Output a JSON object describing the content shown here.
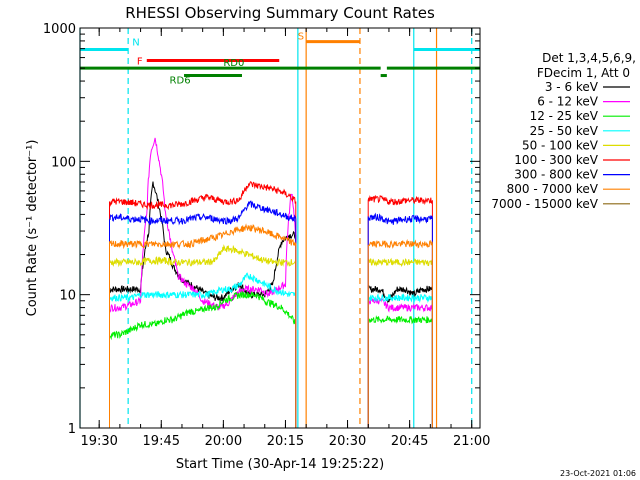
{
  "chart_data": {
    "type": "line",
    "title": "RHESSI Observing Summary Count Rates",
    "xlabel": "Start Time (30-Apr-14 19:25:22)",
    "ylabel": "Count Rate (s⁻¹ detector⁻¹)",
    "y_scale": "log",
    "ylim": [
      1,
      1000
    ],
    "xlim": [
      "19:25:22",
      "21:02:00"
    ],
    "x_tick_labels": [
      "19:30",
      "19:45",
      "20:00",
      "20:15",
      "20:30",
      "20:45",
      "21:00"
    ],
    "y_tick_labels": [
      "1",
      "10",
      "100",
      "1000"
    ],
    "footer_date": "23-Oct-2021 01:06",
    "legend": {
      "header_line1": "Det 1,3,4,5,6,9,",
      "header_line2": "FDecim 1, Att 0",
      "entries": [
        {
          "label": "3 - 6 keV",
          "color": "#000000"
        },
        {
          "label": "6 - 12 keV",
          "color": "#ff00ff"
        },
        {
          "label": "12 - 25 keV",
          "color": "#00ee00"
        },
        {
          "label": "25 - 50 keV",
          "color": "#00ffff"
        },
        {
          "label": "50 - 100 keV",
          "color": "#dddd00"
        },
        {
          "label": "100 - 300 keV",
          "color": "#ff0000"
        },
        {
          "label": "300 - 800 keV",
          "color": "#0000ff"
        },
        {
          "label": "800 - 7000 keV",
          "color": "#ff8000"
        },
        {
          "label": "7000 - 15000 keV",
          "color": "#8b6914"
        }
      ]
    },
    "flags": [
      {
        "label": "N",
        "color": "#00e5ee",
        "segments": [
          [
            "19:25:22",
            "19:37:00"
          ],
          [
            "20:46:00",
            "21:02:00"
          ]
        ],
        "level": 690
      },
      {
        "label": "F",
        "color": "#ff0000",
        "segments": [
          [
            "19:41:30",
            "20:13:30"
          ]
        ],
        "level": 570
      },
      {
        "label": "S",
        "color": "#ff8000",
        "segments": [
          [
            "20:20:00",
            "20:33:00"
          ]
        ],
        "level": 790
      },
      {
        "label": "RD0",
        "color": "#008000",
        "segments": [
          [
            "19:25:22",
            "20:38:00"
          ],
          [
            "20:39:30",
            "21:02:00"
          ]
        ],
        "level": 500
      },
      {
        "label": "RD6",
        "color": "#008000",
        "segments": [
          [
            "19:50:30",
            "20:04:30"
          ],
          [
            "20:38:00",
            "20:39:30"
          ]
        ],
        "level": 440
      }
    ],
    "vlines": [
      {
        "time": "19:25:22",
        "color": "#00e5ee",
        "style": "solid"
      },
      {
        "time": "19:37:00",
        "color": "#00e5ee",
        "style": "dashed"
      },
      {
        "time": "20:18:00",
        "color": "#00e5ee",
        "style": "solid"
      },
      {
        "time": "20:20:00",
        "color": "#ff8000",
        "style": "solid"
      },
      {
        "time": "20:33:00",
        "color": "#ff8000",
        "style": "dashed"
      },
      {
        "time": "20:46:00",
        "color": "#00e5ee",
        "style": "solid"
      },
      {
        "time": "20:51:30",
        "color": "#ff8000",
        "style": "solid"
      },
      {
        "time": "21:00:00",
        "color": "#00e5ee",
        "style": "dashed"
      }
    ],
    "series": [
      {
        "name": "3 - 6 keV",
        "color": "#000000",
        "x": [
          "19:32:30",
          "19:35:00",
          "19:38:00",
          "19:40:00",
          "19:42:00",
          "19:43:00",
          "19:44:30",
          "19:46:00",
          "19:48:00",
          "19:50:00",
          "19:52:00",
          "19:54:00",
          "19:56:00",
          "19:58:00",
          "20:00:00",
          "20:02:00",
          "20:04:00",
          "20:06:00",
          "20:08:00",
          "20:10:00",
          "20:12:00",
          "20:14:00",
          "20:16:00",
          "20:17:30",
          "20:35:00",
          "20:38:00",
          "20:40:00",
          "20:42:00",
          "20:44:00",
          "20:46:00",
          "20:48:00",
          "20:50:30"
        ],
        "y": [
          11,
          11,
          11,
          11,
          30,
          70,
          45,
          22,
          16,
          13,
          12,
          11,
          10,
          9.5,
          9.5,
          11,
          12,
          10,
          10,
          10,
          12,
          25,
          28,
          28,
          11,
          11,
          9,
          11,
          11,
          10,
          11,
          11
        ]
      },
      {
        "name": "6 - 12 keV",
        "color": "#ff00ff",
        "x": [
          "19:32:30",
          "19:35:00",
          "19:38:00",
          "19:40:00",
          "19:41:30",
          "19:42:30",
          "19:43:30",
          "19:44:30",
          "19:46:00",
          "19:47:30",
          "19:49:00",
          "19:51:00",
          "19:53:00",
          "19:55:00",
          "19:57:00",
          "19:59:00",
          "20:01:00",
          "20:03:00",
          "20:05:00",
          "20:07:00",
          "20:09:00",
          "20:11:00",
          "20:13:00",
          "20:15:00",
          "20:16:30",
          "20:17:30",
          "20:35:00",
          "20:38:00",
          "20:40:00",
          "20:42:00",
          "20:44:00",
          "20:46:00",
          "20:48:00",
          "20:50:30"
        ],
        "y": [
          8,
          8,
          8.5,
          9,
          40,
          120,
          150,
          100,
          40,
          22,
          14,
          12,
          11,
          9,
          8.5,
          8,
          8.5,
          10,
          11,
          11,
          11,
          10,
          11,
          12,
          60,
          25,
          9,
          9,
          8,
          8,
          8,
          8,
          8,
          8
        ]
      },
      {
        "name": "12 - 25 keV",
        "color": "#00ee00",
        "x": [
          "19:32:30",
          "19:35:00",
          "19:38:00",
          "19:40:00",
          "19:42:00",
          "19:44:00",
          "19:46:00",
          "19:48:00",
          "19:50:00",
          "19:52:00",
          "19:54:00",
          "19:56:00",
          "19:58:00",
          "20:00:00",
          "20:02:00",
          "20:04:00",
          "20:06:00",
          "20:08:00",
          "20:10:00",
          "20:12:00",
          "20:14:00",
          "20:16:00",
          "20:17:30",
          "20:35:00",
          "20:38:00",
          "20:40:00",
          "20:42:00",
          "20:44:00",
          "20:46:00",
          "20:48:00",
          "20:50:30"
        ],
        "y": [
          5,
          5,
          5.5,
          6,
          6,
          6,
          6.5,
          6.5,
          7,
          7.5,
          7.5,
          8,
          8,
          9,
          9.5,
          10,
          10,
          10,
          9,
          8.5,
          8,
          7,
          6,
          6.5,
          6.5,
          6.5,
          6.5,
          6.5,
          6.5,
          6.5,
          6.5
        ]
      },
      {
        "name": "25 - 50 keV",
        "color": "#00ffff",
        "x": [
          "19:32:30",
          "19:35:00",
          "19:38:00",
          "19:40:00",
          "19:42:00",
          "19:44:00",
          "19:46:00",
          "19:48:00",
          "19:50:00",
          "19:52:00",
          "19:54:00",
          "19:56:00",
          "19:58:00",
          "20:00:00",
          "20:02:00",
          "20:04:00",
          "20:06:00",
          "20:08:00",
          "20:10:00",
          "20:12:00",
          "20:14:00",
          "20:16:00",
          "20:17:30",
          "20:35:00",
          "20:38:00",
          "20:40:00",
          "20:42:00",
          "20:44:00",
          "20:46:00",
          "20:48:00",
          "20:50:30"
        ],
        "y": [
          9.5,
          9.5,
          9.5,
          10,
          10,
          10,
          10,
          10,
          10,
          10,
          10,
          10,
          10.5,
          11,
          11,
          12,
          14,
          13,
          12,
          11,
          10.5,
          10,
          10,
          9.5,
          9.5,
          9.5,
          9.5,
          9.5,
          9.5,
          9.5,
          9.5
        ]
      },
      {
        "name": "50 - 100 keV",
        "color": "#dddd00",
        "x": [
          "19:32:30",
          "19:35:00",
          "19:38:00",
          "19:40:00",
          "19:42:00",
          "19:44:00",
          "19:46:00",
          "19:48:00",
          "19:50:00",
          "19:52:00",
          "19:54:00",
          "19:56:00",
          "19:58:00",
          "20:00:00",
          "20:02:00",
          "20:04:00",
          "20:06:00",
          "20:08:00",
          "20:10:00",
          "20:12:00",
          "20:14:00",
          "20:16:00",
          "20:17:30",
          "20:35:00",
          "20:38:00",
          "20:40:00",
          "20:42:00",
          "20:44:00",
          "20:46:00",
          "20:48:00",
          "20:50:30"
        ],
        "y": [
          17.5,
          17.5,
          17.5,
          17.5,
          18,
          18,
          18,
          17.5,
          17.5,
          17.5,
          17.5,
          17.5,
          18,
          22,
          22,
          21,
          20,
          19,
          18,
          17.5,
          17.5,
          17.5,
          17.5,
          17.5,
          17.5,
          17.5,
          17.5,
          17.5,
          17.5,
          17.5,
          17.5
        ]
      },
      {
        "name": "100 - 300 keV",
        "color": "#ff0000",
        "x": [
          "19:32:30",
          "19:35:00",
          "19:38:00",
          "19:40:00",
          "19:42:00",
          "19:44:00",
          "19:46:00",
          "19:48:00",
          "19:50:00",
          "19:52:00",
          "19:54:00",
          "19:56:00",
          "19:58:00",
          "20:00:00",
          "20:02:00",
          "20:04:00",
          "20:06:00",
          "20:08:00",
          "20:10:00",
          "20:12:00",
          "20:14:00",
          "20:16:00",
          "20:17:30",
          "20:35:00",
          "20:38:00",
          "20:40:00",
          "20:42:00",
          "20:44:00",
          "20:46:00",
          "20:48:00",
          "20:50:30"
        ],
        "y": [
          50,
          50,
          49,
          48,
          47,
          47,
          47,
          47,
          48,
          50,
          52,
          54,
          52,
          50,
          50,
          52,
          68,
          66,
          64,
          62,
          59,
          55,
          50,
          52,
          52,
          50,
          50,
          51,
          51,
          51,
          51
        ]
      },
      {
        "name": "300 - 800 keV",
        "color": "#0000ff",
        "x": [
          "19:32:30",
          "19:35:00",
          "19:38:00",
          "19:40:00",
          "19:42:00",
          "19:44:00",
          "19:46:00",
          "19:48:00",
          "19:50:00",
          "19:52:00",
          "19:54:00",
          "19:56:00",
          "19:58:00",
          "20:00:00",
          "20:02:00",
          "20:04:00",
          "20:06:00",
          "20:08:00",
          "20:10:00",
          "20:12:00",
          "20:14:00",
          "20:16:00",
          "20:17:30",
          "20:35:00",
          "20:38:00",
          "20:40:00",
          "20:42:00",
          "20:44:00",
          "20:46:00",
          "20:48:00",
          "20:50:30"
        ],
        "y": [
          38,
          38,
          37,
          37,
          36,
          36,
          36,
          36,
          36,
          37,
          38,
          38,
          37,
          36,
          36,
          38,
          48,
          46,
          44,
          42,
          40,
          38,
          37,
          38,
          38,
          35,
          36,
          37,
          37,
          37,
          37
        ]
      },
      {
        "name": "800 - 7000 keV",
        "color": "#ff8000",
        "x": [
          "19:32:30",
          "19:35:00",
          "19:38:00",
          "19:40:00",
          "19:42:00",
          "19:44:00",
          "19:46:00",
          "19:48:00",
          "19:50:00",
          "19:52:00",
          "19:54:00",
          "19:56:00",
          "19:58:00",
          "20:00:00",
          "20:02:00",
          "20:04:00",
          "20:06:00",
          "20:08:00",
          "20:10:00",
          "20:12:00",
          "20:14:00",
          "20:16:00",
          "20:17:30",
          "20:35:00",
          "20:38:00",
          "20:40:00",
          "20:42:00",
          "20:44:00",
          "20:46:00",
          "20:48:00",
          "20:50:30"
        ],
        "y": [
          24,
          24,
          24,
          24,
          24,
          24,
          24,
          24,
          24,
          24,
          25,
          26,
          27,
          28,
          30,
          31,
          32,
          31,
          30,
          28,
          27,
          25,
          24,
          24,
          24,
          24,
          24,
          24,
          24,
          24,
          24
        ]
      },
      {
        "name": "7000 - 15000 keV",
        "color": "#8b6914",
        "x": [],
        "y": []
      }
    ]
  }
}
